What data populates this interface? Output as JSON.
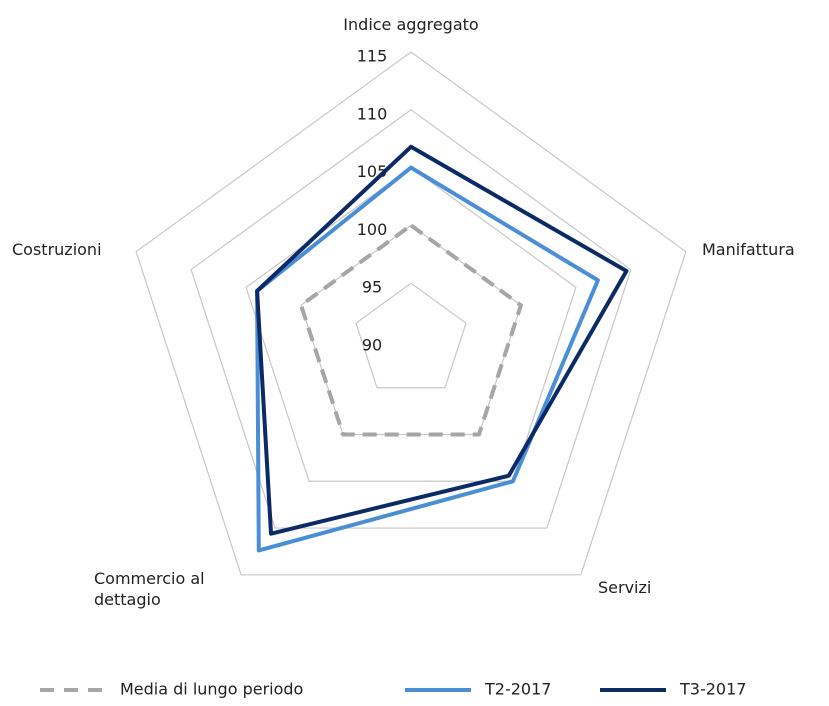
{
  "chart_data": {
    "type": "radar",
    "categories": [
      "Indice aggregato",
      "Manifattura",
      "Servizi",
      "Commercio al dettagio",
      "Costruzioni"
    ],
    "rlim": [
      90,
      115
    ],
    "rticks": [
      90,
      95,
      100,
      105,
      110,
      115
    ],
    "legend": "bottom",
    "series": [
      {
        "name": "Media di lungo periodo",
        "color": "#a6a6a6",
        "dashed": true,
        "values": [
          100,
          100,
          100,
          100,
          100
        ]
      },
      {
        "name": "T2-2017",
        "color": "#4a8fd6",
        "dashed": false,
        "values": [
          105,
          107,
          105,
          112.4,
          104
        ]
      },
      {
        "name": "T3-2017",
        "color": "#0b2a66",
        "dashed": false,
        "values": [
          106.8,
          109.6,
          104.4,
          110.6,
          104
        ]
      }
    ]
  }
}
